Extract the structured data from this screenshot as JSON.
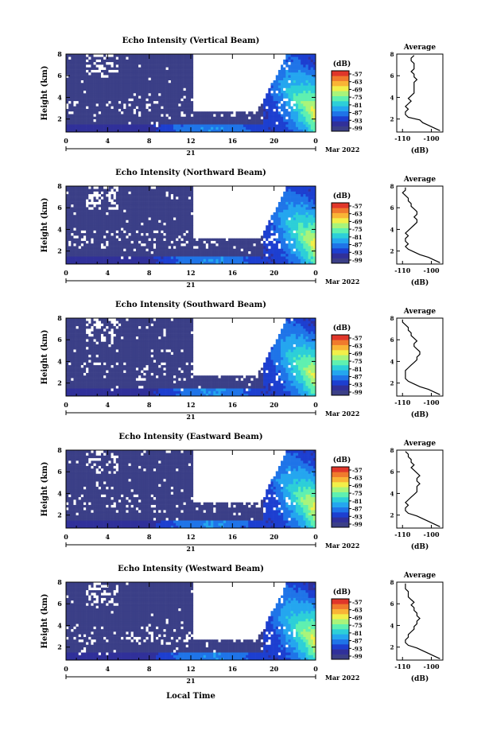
{
  "figure": {
    "xlabel": "Local Time",
    "date_label": "Mar 2022",
    "day_label": "21",
    "colorbar_unit": "(dB)",
    "avg_title": "Average",
    "avg_xlabel": "(dB)",
    "colors": {
      "background": "#ffffff",
      "missing": "#ffffff",
      "low_echo": "#3b3f87",
      "colorbar": [
        "#3b3f87",
        "#30309a",
        "#1d3fd0",
        "#1f74e8",
        "#24a6ef",
        "#2dcfd8",
        "#5ff0b0",
        "#a9f47a",
        "#f2ef49",
        "#f9b436",
        "#f07a2d",
        "#e0362a"
      ]
    }
  },
  "chart_data": [
    {
      "type": "heatmap",
      "title": "Echo Intensity (Vertical Beam)",
      "ylabel": "Height (km)",
      "yticks": [
        "2",
        "4",
        "6",
        "8"
      ],
      "ylim": [
        0.8,
        8
      ],
      "xticks": [
        "0",
        "4",
        "8",
        "12",
        "16",
        "20",
        "0"
      ],
      "xlim": [
        0,
        24
      ],
      "colorbar_ticks": [
        "-57",
        "-63",
        "-69",
        "-75",
        "-81",
        "-87",
        "-93",
        "-99"
      ],
      "average": {
        "xticks": [
          "-110",
          "-100"
        ],
        "xlim": [
          -112,
          -96
        ],
        "yticks": [
          "2",
          "4",
          "6",
          "8"
        ],
        "profile_db": [
          -97,
          -99,
          -101,
          -103,
          -104,
          -108,
          -109,
          -109,
          -108,
          -109,
          -108,
          -107,
          -108,
          -107,
          -106,
          -106,
          -106,
          -106,
          -106,
          -105,
          -106,
          -106,
          -107,
          -106,
          -106,
          -106,
          -107,
          -107,
          -106
        ]
      }
    },
    {
      "type": "heatmap",
      "title": "Echo Intensity (Northward Beam)",
      "ylabel": "Height (km)",
      "yticks": [
        "2",
        "4",
        "6",
        "8"
      ],
      "ylim": [
        0.8,
        8
      ],
      "xticks": [
        "0",
        "4",
        "8",
        "12",
        "16",
        "20",
        "0"
      ],
      "xlim": [
        0,
        24
      ],
      "colorbar_ticks": [
        "-57",
        "-63",
        "-69",
        "-75",
        "-81",
        "-87",
        "-93",
        "-99"
      ],
      "average": {
        "xticks": [
          "-110",
          "-100"
        ],
        "xlim": [
          -112,
          -96
        ],
        "yticks": [
          "2",
          "4",
          "6",
          "8"
        ],
        "profile_db": [
          -97,
          -99,
          -101,
          -104,
          -106,
          -108,
          -109,
          -108,
          -109,
          -109,
          -108,
          -109,
          -108,
          -107,
          -106,
          -105,
          -105,
          -106,
          -105,
          -105,
          -106,
          -107,
          -107,
          -108,
          -108,
          -109,
          -110,
          -109,
          -109
        ]
      }
    },
    {
      "type": "heatmap",
      "title": "Echo Intensity (Southward Beam)",
      "ylabel": "Height (km)",
      "yticks": [
        "2",
        "4",
        "6",
        "8"
      ],
      "ylim": [
        0.8,
        8
      ],
      "xticks": [
        "0",
        "4",
        "8",
        "12",
        "16",
        "20",
        "0"
      ],
      "xlim": [
        0,
        24
      ],
      "colorbar_ticks": [
        "-57",
        "-63",
        "-69",
        "-75",
        "-81",
        "-87",
        "-93",
        "-99"
      ],
      "average": {
        "xticks": [
          "-110",
          "-100"
        ],
        "xlim": [
          -112,
          -96
        ],
        "yticks": [
          "2",
          "4",
          "6",
          "8"
        ],
        "profile_db": [
          -97,
          -99,
          -101,
          -104,
          -106,
          -108,
          -109,
          -109,
          -109,
          -109,
          -108,
          -107,
          -106,
          -105,
          -105,
          -104,
          -104,
          -105,
          -106,
          -106,
          -105,
          -106,
          -107,
          -107,
          -108,
          -108,
          -109,
          -110,
          -110
        ]
      }
    },
    {
      "type": "heatmap",
      "title": "Echo Intensity (Eastward Beam)",
      "ylabel": "Height (km)",
      "yticks": [
        "2",
        "4",
        "6",
        "8"
      ],
      "ylim": [
        0.8,
        8
      ],
      "xticks": [
        "0",
        "4",
        "8",
        "12",
        "16",
        "20",
        "0"
      ],
      "xlim": [
        0,
        24
      ],
      "colorbar_ticks": [
        "-57",
        "-63",
        "-69",
        "-75",
        "-81",
        "-87",
        "-93",
        "-99"
      ],
      "average": {
        "xticks": [
          "-110",
          "-100"
        ],
        "xlim": [
          -112,
          -96
        ],
        "yticks": [
          "2",
          "4",
          "6",
          "8"
        ],
        "profile_db": [
          -97,
          -99,
          -101,
          -103,
          -105,
          -108,
          -109,
          -109,
          -108,
          -109,
          -108,
          -107,
          -106,
          -105,
          -105,
          -105,
          -104,
          -105,
          -105,
          -104,
          -105,
          -106,
          -107,
          -106,
          -107,
          -107,
          -108,
          -108,
          -109
        ]
      }
    },
    {
      "type": "heatmap",
      "title": "Echo Intensity (Westward Beam)",
      "ylabel": "Height (km)",
      "yticks": [
        "2",
        "4",
        "6",
        "8"
      ],
      "ylim": [
        0.8,
        8
      ],
      "xticks": [
        "0",
        "4",
        "8",
        "12",
        "16",
        "20",
        "0"
      ],
      "xlim": [
        0,
        24
      ],
      "colorbar_ticks": [
        "-57",
        "-63",
        "-69",
        "-75",
        "-81",
        "-87",
        "-93",
        "-99"
      ],
      "average": {
        "xticks": [
          "-110",
          "-100"
        ],
        "xlim": [
          -112,
          -96
        ],
        "yticks": [
          "2",
          "4",
          "6",
          "8"
        ],
        "profile_db": [
          -97,
          -99,
          -101,
          -103,
          -105,
          -108,
          -109,
          -109,
          -108,
          -108,
          -107,
          -106,
          -106,
          -105,
          -105,
          -104,
          -105,
          -105,
          -106,
          -106,
          -107,
          -106,
          -107,
          -108,
          -108,
          -108,
          -109,
          -109,
          -109
        ]
      }
    }
  ]
}
